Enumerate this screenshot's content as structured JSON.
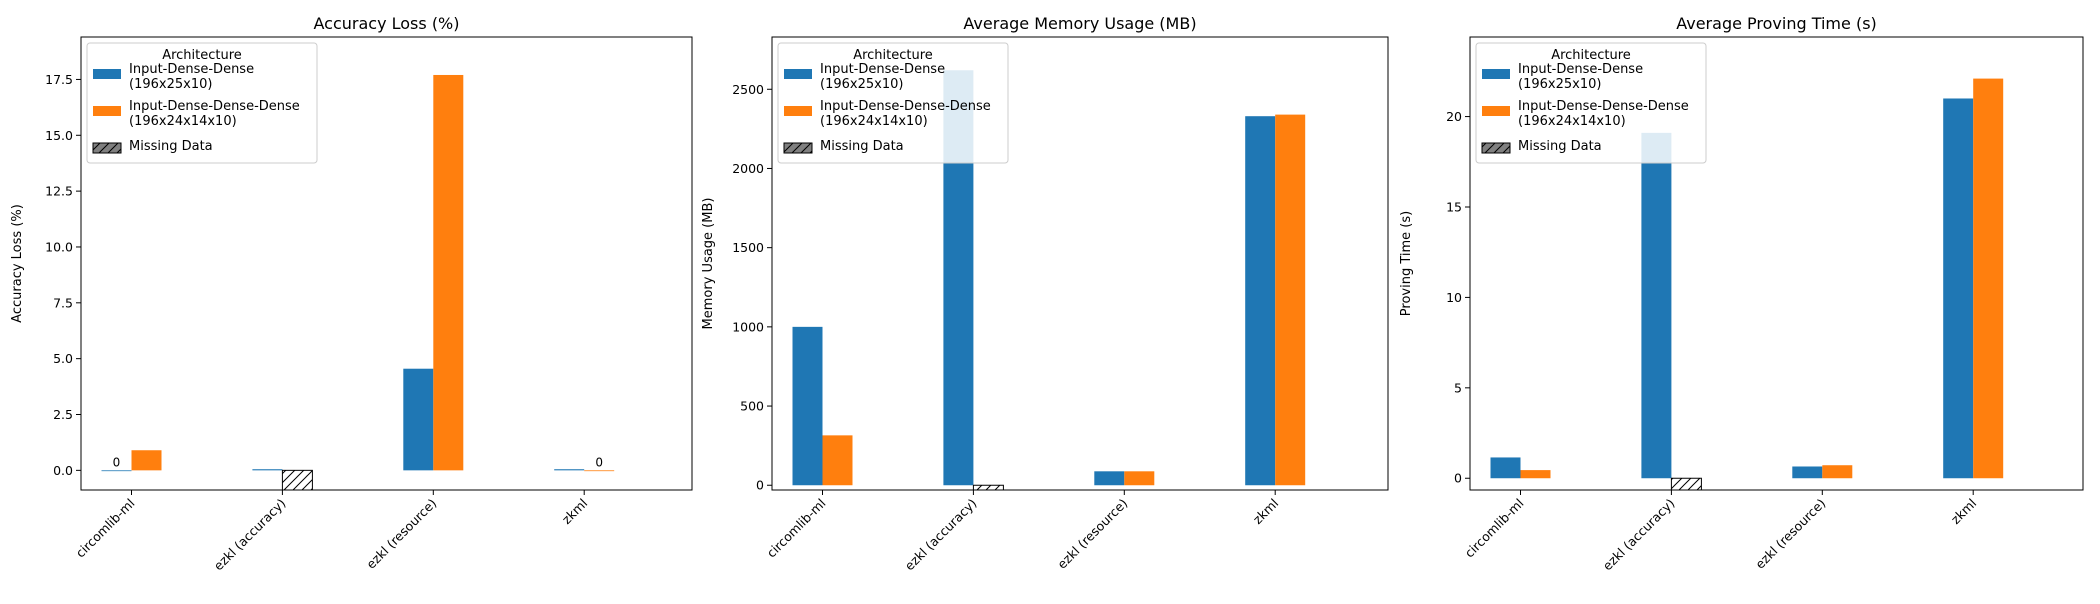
{
  "legend": {
    "title": "Architecture",
    "entries": [
      {
        "name": "series-a",
        "lines": [
          "Input-Dense-Dense",
          "(196x25x10)"
        ],
        "color": "#1f77b4"
      },
      {
        "name": "series-b",
        "lines": [
          "Input-Dense-Dense-Dense",
          "(196x24x14x10)"
        ],
        "color": "#ff7f0e"
      },
      {
        "name": "missing",
        "lines": [
          "Missing Data"
        ],
        "color": "#808080",
        "hatch": true
      }
    ]
  },
  "chart_data": [
    {
      "type": "bar",
      "title": "Accuracy Loss (%)",
      "ylabel": "Accuracy Loss (%)",
      "xlabel": "",
      "categories": [
        "circomlib-ml",
        "ezkl (accuracy)",
        "ezkl (resource)",
        "zkml"
      ],
      "ylim": [
        -0.88,
        19.4
      ],
      "yticks": [
        "0.0",
        "2.5",
        "5.0",
        "7.5",
        "10.0",
        "12.5",
        "15.0",
        "17.5"
      ],
      "ytick_values": [
        0,
        2.5,
        5,
        7.5,
        10,
        12.5,
        15,
        17.5
      ],
      "series": [
        {
          "name": "Input-Dense-Dense (196x25x10)",
          "values": [
            0,
            0.05,
            4.55,
            0.05
          ]
        },
        {
          "name": "Input-Dense-Dense-Dense (196x24x14x10)",
          "values": [
            0.9,
            null,
            17.7,
            0
          ]
        }
      ],
      "missing": [
        {
          "series": 1,
          "category": 1,
          "value": -0.88
        }
      ],
      "annotations": [
        {
          "category": 0,
          "series": 0,
          "text": "0"
        },
        {
          "category": 3,
          "series": 1,
          "text": "0"
        }
      ],
      "grid": false,
      "legend_position": "top-left"
    },
    {
      "type": "bar",
      "title": "Average Memory Usage (MB)",
      "ylabel": "Memory Usage (MB)",
      "xlabel": "",
      "categories": [
        "circomlib-ml",
        "ezkl (accuracy)",
        "ezkl (resource)",
        "zkml"
      ],
      "ylim": [
        -30,
        2830
      ],
      "yticks": [
        "0",
        "500",
        "1000",
        "1500",
        "2000",
        "2500"
      ],
      "ytick_values": [
        0,
        500,
        1000,
        1500,
        2000,
        2500
      ],
      "series": [
        {
          "name": "Input-Dense-Dense (196x25x10)",
          "values": [
            1000,
            2620,
            88,
            2330
          ]
        },
        {
          "name": "Input-Dense-Dense-Dense (196x24x14x10)",
          "values": [
            315,
            null,
            88,
            2340
          ]
        }
      ],
      "missing": [
        {
          "series": 1,
          "category": 1,
          "value": -30
        }
      ],
      "annotations": [],
      "grid": false,
      "legend_position": "top-left"
    },
    {
      "type": "bar",
      "title": "Average Proving Time (s)",
      "ylabel": "Proving Time (s)",
      "xlabel": "",
      "categories": [
        "circomlib-ml",
        "ezkl (accuracy)",
        "ezkl (resource)",
        "zkml"
      ],
      "ylim": [
        -0.65,
        24.4
      ],
      "yticks": [
        "0",
        "5",
        "10",
        "15",
        "20"
      ],
      "ytick_values": [
        0,
        5,
        10,
        15,
        20
      ],
      "series": [
        {
          "name": "Input-Dense-Dense (196x25x10)",
          "values": [
            1.15,
            19.1,
            0.65,
            21.0
          ]
        },
        {
          "name": "Input-Dense-Dense-Dense (196x24x14x10)",
          "values": [
            0.45,
            null,
            0.72,
            22.1
          ]
        }
      ],
      "missing": [
        {
          "series": 1,
          "category": 1,
          "value": -0.65
        }
      ],
      "annotations": [],
      "grid": false,
      "legend_position": "top-left"
    }
  ]
}
